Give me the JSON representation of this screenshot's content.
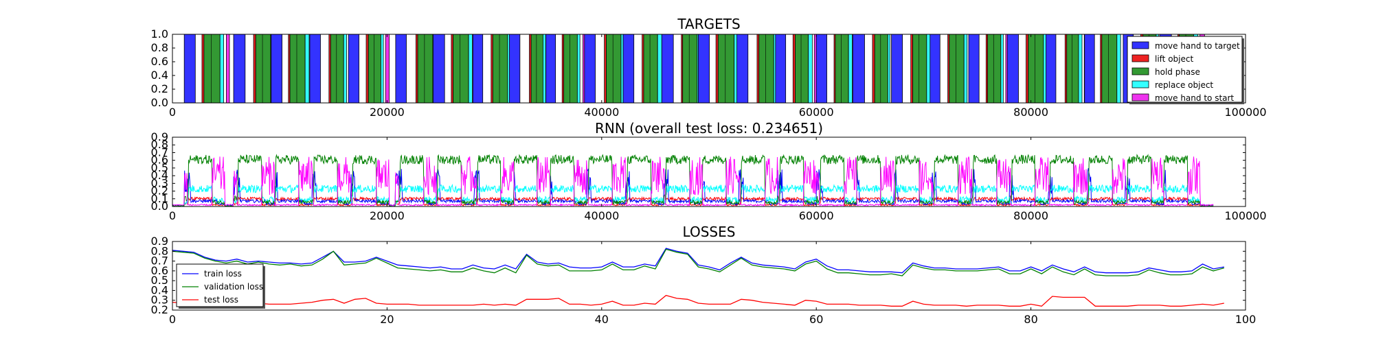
{
  "chart_data": [
    {
      "type": "bar",
      "title": "TARGETS",
      "xlim": [
        0,
        100000
      ],
      "ylim": [
        0,
        1.0
      ],
      "xticks": [
        "0",
        "20000",
        "40000",
        "60000",
        "80000",
        "100000"
      ],
      "yticks": [
        "0.0",
        "0.2",
        "0.4",
        "0.6",
        "0.8",
        "1.0"
      ],
      "legend_position": "right",
      "series": [
        {
          "name": "move hand to target",
          "color": "#3333ff"
        },
        {
          "name": "lift object",
          "color": "#ee2222"
        },
        {
          "name": "hold phase",
          "color": "#339933"
        },
        {
          "name": "replace object",
          "color": "#33ffff"
        },
        {
          "name": "move hand to start",
          "color": "#ee33ee"
        }
      ],
      "trials": [
        1100,
        5700,
        9200,
        12800,
        16400,
        20800,
        24300,
        28000,
        31400,
        34800,
        38400,
        42000,
        45600,
        49000,
        52600,
        56200,
        60000,
        63400,
        67000,
        70600,
        74200,
        77800,
        81400,
        85000,
        88600,
        92000
      ]
    },
    {
      "type": "line",
      "title": "RNN (overall test loss: 0.234651)",
      "xlim": [
        0,
        100000
      ],
      "ylim": [
        0.0,
        0.9
      ],
      "xticks": [
        "0",
        "20000",
        "40000",
        "60000",
        "80000",
        "100000"
      ],
      "yticks": [
        "0.0",
        "0.1",
        "0.2",
        "0.3",
        "0.4",
        "0.5",
        "0.6",
        "0.7",
        "0.8",
        "0.9"
      ],
      "series_colors": [
        "#0000ff",
        "#ff0000",
        "#008000",
        "#00ffff",
        "#ff00ff"
      ],
      "levels": {
        "blue": 0.5,
        "red": 0.08,
        "green": 0.55,
        "cyan": 0.18,
        "magenta": 0.4
      },
      "data_end": 97000
    },
    {
      "type": "line",
      "title": "LOSSES",
      "xlim": [
        0,
        100
      ],
      "ylim": [
        0.2,
        0.9
      ],
      "xticks": [
        "0",
        "20",
        "40",
        "60",
        "80",
        "100"
      ],
      "yticks": [
        "0.2",
        "0.3",
        "0.4",
        "0.5",
        "0.6",
        "0.7",
        "0.8",
        "0.9"
      ],
      "legend_position": "bottom-left",
      "series": [
        {
          "name": "train loss",
          "color": "#0000ff",
          "values": [
            0.81,
            0.8,
            0.79,
            0.74,
            0.71,
            0.7,
            0.72,
            0.69,
            0.7,
            0.69,
            0.68,
            0.68,
            0.67,
            0.68,
            0.74,
            0.8,
            0.69,
            0.69,
            0.7,
            0.74,
            0.7,
            0.66,
            0.65,
            0.64,
            0.63,
            0.64,
            0.62,
            0.62,
            0.66,
            0.63,
            0.62,
            0.66,
            0.62,
            0.77,
            0.69,
            0.67,
            0.68,
            0.64,
            0.63,
            0.63,
            0.64,
            0.69,
            0.64,
            0.64,
            0.67,
            0.65,
            0.83,
            0.8,
            0.78,
            0.66,
            0.64,
            0.61,
            0.68,
            0.74,
            0.68,
            0.66,
            0.65,
            0.64,
            0.62,
            0.69,
            0.72,
            0.65,
            0.61,
            0.61,
            0.6,
            0.59,
            0.59,
            0.59,
            0.58,
            0.68,
            0.65,
            0.63,
            0.63,
            0.62,
            0.62,
            0.62,
            0.63,
            0.64,
            0.6,
            0.6,
            0.64,
            0.6,
            0.66,
            0.62,
            0.59,
            0.64,
            0.59,
            0.58,
            0.58,
            0.58,
            0.59,
            0.63,
            0.61,
            0.59,
            0.59,
            0.6,
            0.67,
            0.62,
            0.64
          ]
        },
        {
          "name": "validation loss",
          "color": "#008000",
          "values": [
            0.8,
            0.79,
            0.78,
            0.73,
            0.7,
            0.68,
            0.7,
            0.67,
            0.69,
            0.67,
            0.66,
            0.67,
            0.65,
            0.66,
            0.72,
            0.8,
            0.66,
            0.67,
            0.68,
            0.73,
            0.68,
            0.63,
            0.62,
            0.61,
            0.6,
            0.61,
            0.59,
            0.59,
            0.63,
            0.6,
            0.58,
            0.63,
            0.58,
            0.76,
            0.67,
            0.65,
            0.66,
            0.6,
            0.6,
            0.6,
            0.61,
            0.67,
            0.61,
            0.61,
            0.65,
            0.62,
            0.82,
            0.79,
            0.77,
            0.64,
            0.62,
            0.59,
            0.66,
            0.73,
            0.66,
            0.64,
            0.63,
            0.62,
            0.6,
            0.67,
            0.7,
            0.62,
            0.58,
            0.58,
            0.57,
            0.56,
            0.56,
            0.57,
            0.55,
            0.66,
            0.63,
            0.61,
            0.61,
            0.6,
            0.6,
            0.6,
            0.61,
            0.62,
            0.57,
            0.57,
            0.62,
            0.57,
            0.64,
            0.59,
            0.56,
            0.62,
            0.56,
            0.55,
            0.55,
            0.55,
            0.56,
            0.61,
            0.58,
            0.56,
            0.56,
            0.57,
            0.64,
            0.6,
            0.63
          ]
        },
        {
          "name": "test loss",
          "color": "#ff0000",
          "values": [
            0.28,
            0.27,
            0.27,
            0.26,
            0.26,
            0.27,
            0.26,
            0.27,
            0.27,
            0.26,
            0.26,
            0.26,
            0.27,
            0.28,
            0.3,
            0.31,
            0.27,
            0.31,
            0.32,
            0.27,
            0.26,
            0.26,
            0.26,
            0.25,
            0.25,
            0.25,
            0.25,
            0.25,
            0.25,
            0.26,
            0.25,
            0.26,
            0.25,
            0.31,
            0.31,
            0.31,
            0.32,
            0.26,
            0.26,
            0.25,
            0.26,
            0.29,
            0.25,
            0.25,
            0.27,
            0.26,
            0.35,
            0.32,
            0.31,
            0.27,
            0.26,
            0.26,
            0.26,
            0.31,
            0.3,
            0.28,
            0.27,
            0.26,
            0.25,
            0.3,
            0.29,
            0.26,
            0.26,
            0.26,
            0.25,
            0.25,
            0.25,
            0.24,
            0.24,
            0.29,
            0.26,
            0.25,
            0.25,
            0.25,
            0.24,
            0.25,
            0.25,
            0.25,
            0.24,
            0.24,
            0.26,
            0.24,
            0.34,
            0.33,
            0.33,
            0.33,
            0.24,
            0.24,
            0.24,
            0.24,
            0.25,
            0.25,
            0.25,
            0.24,
            0.24,
            0.25,
            0.26,
            0.25,
            0.27
          ]
        }
      ]
    }
  ]
}
